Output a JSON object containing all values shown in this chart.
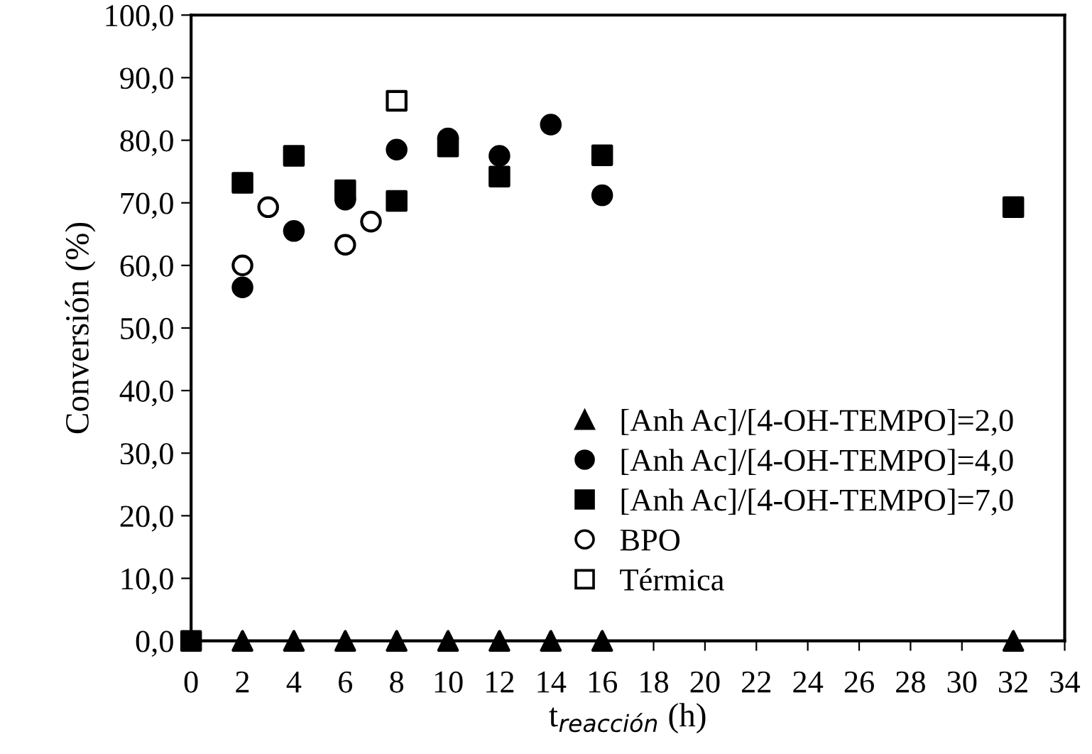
{
  "chart_data": {
    "type": "scatter",
    "xlabel": "t$_{reacción}$ (h)",
    "ylabel": "Conversión (%)",
    "xlim": [
      0,
      34
    ],
    "xticks": [
      0,
      2,
      4,
      6,
      8,
      10,
      12,
      14,
      16,
      18,
      20,
      22,
      24,
      26,
      28,
      30,
      32,
      34
    ],
    "ylim": [
      0,
      100
    ],
    "yticks": [
      {
        "value": 0,
        "label": "0,0"
      },
      {
        "value": 10,
        "label": "10,0"
      },
      {
        "value": 20,
        "label": "20,0"
      },
      {
        "value": 30,
        "label": "30,0"
      },
      {
        "value": 40,
        "label": "40,0"
      },
      {
        "value": 50,
        "label": "50,0"
      },
      {
        "value": 60,
        "label": "60,0"
      },
      {
        "value": 70,
        "label": "70,0"
      },
      {
        "value": 80,
        "label": "80,0"
      },
      {
        "value": 90,
        "label": "90,0"
      },
      {
        "value": 100,
        "label": "100,0"
      }
    ],
    "grid": false,
    "legend": "bottom",
    "series": [
      {
        "name": "[Anh Ac]/[4-OH-TEMPO]=2,0",
        "color": "#000000",
        "marker": "triangle",
        "x": [
          2,
          4,
          6,
          8,
          10,
          12,
          14,
          16,
          32
        ],
        "values": [
          0,
          0,
          0,
          0,
          0,
          0,
          0,
          0,
          0
        ]
      },
      {
        "name": "[Anh Ac]/[4-OH-TEMPO]=4,0",
        "color": "#000000",
        "marker": "circle",
        "x": [
          2,
          4,
          6,
          8,
          10,
          12,
          14,
          16
        ],
        "values": [
          56.5,
          65.5,
          70.5,
          78.5,
          80.3,
          77.5,
          82.5,
          71.2
        ]
      },
      {
        "name": "[Anh Ac]/[4-OH-TEMPO]=7,0",
        "color": "#000000",
        "marker": "square",
        "x": [
          0,
          2,
          4,
          6,
          8,
          10,
          12,
          16,
          32
        ],
        "values": [
          0,
          73.2,
          77.5,
          72,
          70.3,
          79,
          74.2,
          77.6,
          69.3
        ]
      },
      {
        "name": "BPO",
        "color": "#ffffff",
        "marker": "circle",
        "x": [
          2,
          3,
          6,
          7
        ],
        "values": [
          60,
          69.3,
          63.3,
          67
        ]
      },
      {
        "name": "Térmica",
        "color": "#ffffff",
        "marker": "square",
        "x": [
          8
        ],
        "values": [
          86.3
        ]
      }
    ]
  }
}
